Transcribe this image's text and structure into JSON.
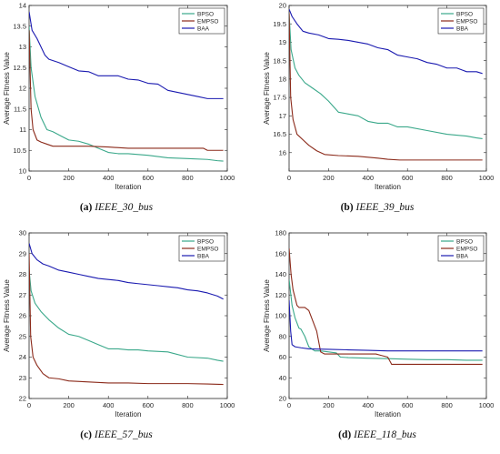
{
  "chart_data": [
    {
      "type": "line",
      "caption": {
        "letter": "(a)",
        "text": "IEEE_30_bus"
      },
      "xlabel": "Iteration",
      "ylabel": "Average Fitness Value",
      "xlim": [
        0,
        1000
      ],
      "ylim": [
        10,
        14
      ],
      "xticks": [
        0,
        200,
        400,
        600,
        800,
        1000
      ],
      "yticks": [
        10,
        10.5,
        11,
        11.5,
        12,
        12.5,
        13,
        13.5,
        14
      ],
      "ytick_labels": [
        "10",
        "10.5",
        "11",
        "11.5",
        "12",
        "12.5",
        "13",
        "13.5",
        "14"
      ],
      "legend_position": "top-right",
      "series": [
        {
          "name": "BPSO",
          "color": "#3aa88a",
          "x": [
            0,
            10,
            30,
            60,
            90,
            120,
            160,
            200,
            250,
            300,
            350,
            400,
            450,
            500,
            550,
            600,
            700,
            800,
            900,
            950,
            980
          ],
          "y": [
            13.5,
            12.5,
            11.8,
            11.3,
            11.0,
            10.95,
            10.85,
            10.75,
            10.72,
            10.65,
            10.55,
            10.45,
            10.42,
            10.42,
            10.4,
            10.38,
            10.32,
            10.3,
            10.28,
            10.25,
            10.24
          ]
        },
        {
          "name": "EMPSO",
          "color": "#8b2a1a",
          "x": [
            0,
            10,
            20,
            40,
            60,
            90,
            120,
            160,
            200,
            300,
            400,
            500,
            600,
            700,
            800,
            880,
            900,
            950,
            980
          ],
          "y": [
            13.4,
            11.5,
            11.0,
            10.75,
            10.7,
            10.65,
            10.6,
            10.6,
            10.6,
            10.6,
            10.58,
            10.55,
            10.55,
            10.55,
            10.55,
            10.55,
            10.5,
            10.5,
            10.5
          ]
        },
        {
          "name": "BAA",
          "color": "#1a1ab0",
          "x": [
            0,
            15,
            40,
            60,
            80,
            100,
            150,
            200,
            250,
            300,
            350,
            400,
            450,
            500,
            550,
            600,
            650,
            700,
            750,
            800,
            850,
            900,
            950,
            980
          ],
          "y": [
            13.85,
            13.4,
            13.2,
            13.0,
            12.8,
            12.7,
            12.62,
            12.52,
            12.42,
            12.4,
            12.3,
            12.3,
            12.3,
            12.22,
            12.2,
            12.12,
            12.1,
            11.95,
            11.9,
            11.85,
            11.8,
            11.75,
            11.75,
            11.75
          ]
        }
      ]
    },
    {
      "type": "line",
      "caption": {
        "letter": "(b)",
        "text": "IEEE_39_bus"
      },
      "xlabel": "Iteration",
      "ylabel": "Average Fitness Value",
      "xlim": [
        0,
        1000
      ],
      "ylim": [
        15.5,
        20
      ],
      "xticks": [
        0,
        200,
        400,
        600,
        800,
        1000
      ],
      "yticks": [
        16,
        16.5,
        17,
        17.5,
        18,
        18.5,
        19,
        19.5,
        20
      ],
      "ytick_labels": [
        "16",
        "16.5",
        "17",
        "17.5",
        "18",
        "18.5",
        "19",
        "19.5",
        "20"
      ],
      "legend_position": "top-right",
      "series": [
        {
          "name": "BPSO",
          "color": "#3aa88a",
          "x": [
            0,
            10,
            30,
            50,
            80,
            120,
            160,
            200,
            250,
            300,
            350,
            400,
            450,
            500,
            550,
            600,
            700,
            800,
            900,
            950,
            980
          ],
          "y": [
            19.8,
            18.8,
            18.3,
            18.1,
            17.9,
            17.75,
            17.6,
            17.4,
            17.1,
            17.05,
            17.0,
            16.85,
            16.8,
            16.8,
            16.7,
            16.7,
            16.6,
            16.5,
            16.45,
            16.4,
            16.38
          ]
        },
        {
          "name": "EMPSO",
          "color": "#8b2a1a",
          "x": [
            0,
            8,
            20,
            40,
            70,
            100,
            140,
            180,
            250,
            350,
            450,
            500,
            560,
            700,
            800,
            900,
            980
          ],
          "y": [
            19.8,
            17.5,
            16.9,
            16.5,
            16.35,
            16.2,
            16.05,
            15.95,
            15.92,
            15.9,
            15.85,
            15.82,
            15.8,
            15.8,
            15.8,
            15.8,
            15.8
          ]
        },
        {
          "name": "BBA",
          "color": "#1a1ab0",
          "x": [
            0,
            15,
            40,
            70,
            100,
            150,
            200,
            250,
            300,
            350,
            400,
            450,
            500,
            550,
            600,
            650,
            700,
            750,
            800,
            850,
            900,
            950,
            980
          ],
          "y": [
            19.9,
            19.7,
            19.5,
            19.3,
            19.25,
            19.2,
            19.1,
            19.08,
            19.05,
            19.0,
            18.95,
            18.85,
            18.8,
            18.65,
            18.6,
            18.55,
            18.45,
            18.4,
            18.3,
            18.3,
            18.2,
            18.2,
            18.15
          ]
        }
      ]
    },
    {
      "type": "line",
      "caption": {
        "letter": "(c)",
        "text": "IEEE_57_bus"
      },
      "xlabel": "Iteration",
      "ylabel": "Average Fitness Value",
      "xlim": [
        0,
        1000
      ],
      "ylim": [
        22,
        30
      ],
      "xticks": [
        0,
        200,
        400,
        600,
        800,
        1000
      ],
      "yticks": [
        22,
        23,
        24,
        25,
        26,
        27,
        28,
        29,
        30
      ],
      "ytick_labels": [
        "22",
        "23",
        "24",
        "25",
        "26",
        "27",
        "28",
        "29",
        "30"
      ],
      "legend_position": "top-right",
      "series": [
        {
          "name": "BPSO",
          "color": "#3aa88a",
          "x": [
            0,
            10,
            30,
            60,
            100,
            150,
            200,
            250,
            300,
            350,
            400,
            450,
            500,
            550,
            600,
            700,
            800,
            900,
            950,
            980
          ],
          "y": [
            28.2,
            27.2,
            26.6,
            26.2,
            25.8,
            25.4,
            25.1,
            25.0,
            24.8,
            24.6,
            24.4,
            24.4,
            24.35,
            24.35,
            24.3,
            24.25,
            24.0,
            23.95,
            23.85,
            23.8
          ]
        },
        {
          "name": "EMPSO",
          "color": "#8b2a1a",
          "x": [
            0,
            8,
            20,
            40,
            70,
            100,
            150,
            200,
            300,
            400,
            500,
            600,
            700,
            800,
            900,
            980
          ],
          "y": [
            29.0,
            25.0,
            24.0,
            23.6,
            23.2,
            23.0,
            22.95,
            22.85,
            22.8,
            22.75,
            22.75,
            22.72,
            22.72,
            22.72,
            22.7,
            22.68
          ]
        },
        {
          "name": "BBA",
          "color": "#1a1ab0",
          "x": [
            0,
            15,
            40,
            70,
            100,
            150,
            200,
            250,
            300,
            350,
            400,
            450,
            500,
            550,
            600,
            650,
            700,
            750,
            800,
            850,
            900,
            950,
            980
          ],
          "y": [
            29.5,
            29.0,
            28.7,
            28.5,
            28.4,
            28.2,
            28.1,
            28.0,
            27.9,
            27.8,
            27.75,
            27.7,
            27.6,
            27.55,
            27.5,
            27.45,
            27.4,
            27.35,
            27.25,
            27.2,
            27.1,
            26.95,
            26.8
          ]
        }
      ]
    },
    {
      "type": "line",
      "caption": {
        "letter": "(d)",
        "text": "IEEE_118_bus"
      },
      "xlabel": "Iteration",
      "ylabel": "Average Fitness Value",
      "xlim": [
        0,
        1000
      ],
      "ylim": [
        20,
        180
      ],
      "xticks": [
        0,
        200,
        400,
        600,
        800,
        1000
      ],
      "yticks": [
        20,
        40,
        60,
        80,
        100,
        120,
        140,
        160,
        180
      ],
      "ytick_labels": [
        "20",
        "40",
        "60",
        "80",
        "100",
        "120",
        "140",
        "160",
        "180"
      ],
      "legend_position": "top-right",
      "series": [
        {
          "name": "BPSO",
          "color": "#3aa88a",
          "x": [
            0,
            15,
            30,
            50,
            60,
            80,
            100,
            130,
            160,
            200,
            240,
            260,
            300,
            400,
            500,
            600,
            700,
            800,
            900,
            980
          ],
          "y": [
            135,
            110,
            98,
            88,
            87,
            80,
            70,
            66,
            66,
            65,
            64,
            60,
            59.5,
            59,
            58.5,
            58,
            57.5,
            57.5,
            57,
            57
          ]
        },
        {
          "name": "EMPSO",
          "color": "#8b2a1a",
          "x": [
            0,
            10,
            20,
            40,
            50,
            80,
            100,
            120,
            140,
            160,
            180,
            250,
            300,
            400,
            440,
            460,
            500,
            520,
            600,
            700,
            800,
            900,
            980
          ],
          "y": [
            165,
            140,
            125,
            110,
            108,
            108,
            105,
            95,
            85,
            65,
            63,
            63,
            63,
            63,
            63,
            62,
            60,
            53,
            53,
            53,
            53,
            53,
            53
          ]
        },
        {
          "name": "BBA",
          "color": "#1a1ab0",
          "x": [
            0,
            8,
            15,
            30,
            60,
            100,
            200,
            300,
            400,
            500,
            600,
            700,
            800,
            900,
            980
          ],
          "y": [
            115,
            85,
            72,
            70,
            69,
            68,
            67.5,
            67,
            66.5,
            66,
            66,
            66,
            66,
            66,
            66
          ]
        }
      ]
    }
  ]
}
